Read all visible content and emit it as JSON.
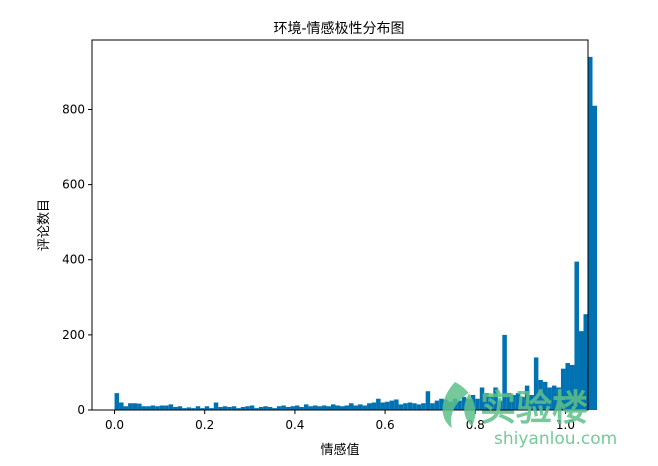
{
  "chart_data": {
    "type": "bar",
    "title": "环境-情感极性分布图",
    "xlabel": "情感值",
    "ylabel": "评论数目",
    "xlim": [
      -0.05,
      1.05
    ],
    "ylim": [
      0,
      985
    ],
    "xticks": [
      "0.0",
      "0.2",
      "0.4",
      "0.6",
      "0.8",
      "1.0"
    ],
    "xtick_values": [
      0.0,
      0.2,
      0.4,
      0.6,
      0.8,
      1.0
    ],
    "yticks": [
      "0",
      "200",
      "400",
      "600",
      "800"
    ],
    "ytick_values": [
      0,
      200,
      400,
      600,
      800
    ],
    "bar_color": "#0072b2",
    "bin_start": 0.0,
    "bin_width": 0.01,
    "values": [
      45,
      20,
      10,
      18,
      18,
      17,
      10,
      10,
      12,
      10,
      12,
      12,
      15,
      8,
      10,
      5,
      7,
      5,
      10,
      5,
      10,
      5,
      20,
      8,
      10,
      8,
      10,
      5,
      8,
      10,
      12,
      5,
      8,
      10,
      8,
      5,
      10,
      12,
      8,
      10,
      12,
      8,
      15,
      10,
      12,
      10,
      12,
      10,
      15,
      12,
      10,
      12,
      18,
      12,
      15,
      12,
      18,
      20,
      30,
      20,
      22,
      25,
      28,
      15,
      18,
      20,
      18,
      15,
      18,
      50,
      18,
      25,
      30,
      28,
      22,
      30,
      25,
      35,
      30,
      40,
      30,
      60,
      45,
      35,
      60,
      25,
      200,
      45,
      40,
      45,
      35,
      65,
      40,
      140,
      80,
      75,
      60,
      65,
      60,
      110,
      125,
      120,
      395,
      210,
      255,
      940,
      810
    ]
  },
  "watermark": {
    "logo_text": "实验楼",
    "url_text": "shiyanlou.com",
    "color": "#5ec08a"
  }
}
